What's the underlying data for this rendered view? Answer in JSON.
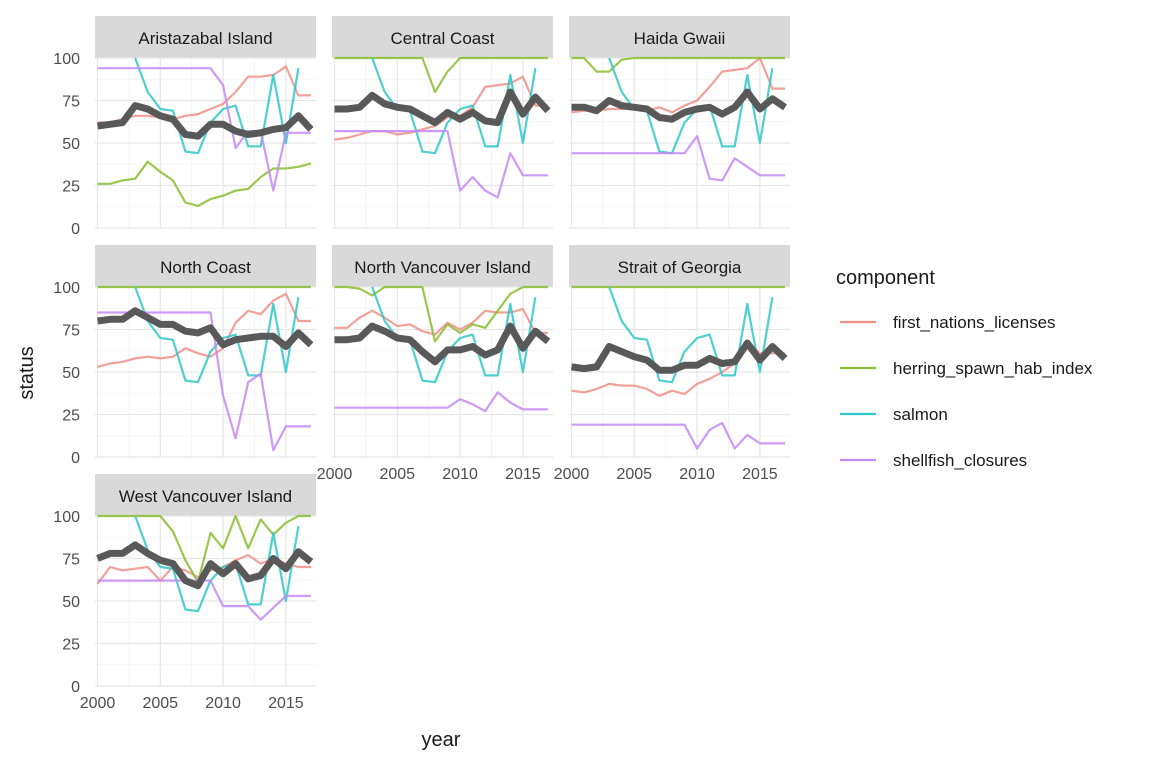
{
  "chart_data": {
    "type": "line",
    "xlabel": "year",
    "ylabel": "status",
    "xlim": [
      1999.8,
      2017.4
    ],
    "ylim": [
      0,
      100
    ],
    "x_ticks": [
      2000,
      2005,
      2010,
      2015
    ],
    "y_ticks": [
      0,
      25,
      50,
      75,
      100
    ],
    "grid": true,
    "legend": {
      "title": "component",
      "position": "right",
      "entries": [
        "first_nations_licenses",
        "herring_spawn_hab_index",
        "salmon",
        "shellfish_closures"
      ]
    },
    "colors": {
      "first_nations_licenses": "#f08f86",
      "herring_spawn_hab_index": "#8bbd2f",
      "salmon": "#2fc8c8",
      "shellfish_closures": "#c489f6",
      "score": "#595959"
    },
    "years": [
      2000,
      2001,
      2002,
      2003,
      2004,
      2005,
      2006,
      2007,
      2008,
      2009,
      2010,
      2011,
      2012,
      2013,
      2014,
      2015,
      2016,
      2017
    ],
    "panels": [
      {
        "title": "Aristazabal Island",
        "series": [
          {
            "name": "first_nations_licenses",
            "values": [
              62,
              62,
              64,
              66,
              66,
              65,
              64,
              66,
              67,
              70,
              73,
              80,
              89,
              89,
              90,
              95,
              78,
              78
            ]
          },
          {
            "name": "herring_spawn_hab_index",
            "values": [
              26,
              26,
              28,
              29,
              39,
              33,
              28,
              15,
              13,
              17,
              19,
              22,
              23,
              30,
              35,
              35,
              36,
              38
            ]
          },
          {
            "name": "salmon",
            "values": [
              null,
              null,
              null,
              100,
              80,
              70,
              69,
              45,
              44,
              62,
              70,
              72,
              48,
              48,
              90,
              50,
              94,
              null
            ]
          },
          {
            "name": "shellfish_closures",
            "values": [
              94,
              94,
              94,
              94,
              94,
              94,
              94,
              94,
              94,
              94,
              84,
              47,
              57,
              57,
              22,
              56,
              56,
              56
            ]
          },
          {
            "name": "score",
            "values": [
              60,
              61,
              62,
              72,
              70,
              66,
              64,
              55,
              54,
              61,
              61,
              57,
              55,
              56,
              58,
              59,
              66,
              58
            ]
          }
        ]
      },
      {
        "title": "Central Coast",
        "series": [
          {
            "name": "first_nations_licenses",
            "values": [
              52,
              53,
              55,
              57,
              57,
              55,
              56,
              58,
              60,
              65,
              66,
              71,
              83,
              84,
              85,
              89,
              72,
              72
            ]
          },
          {
            "name": "herring_spawn_hab_index",
            "values": [
              100,
              100,
              100,
              100,
              100,
              100,
              100,
              100,
              80,
              92,
              100,
              100,
              100,
              100,
              100,
              100,
              100,
              100
            ]
          },
          {
            "name": "salmon",
            "values": [
              null,
              null,
              null,
              100,
              80,
              70,
              69,
              45,
              44,
              62,
              70,
              72,
              48,
              48,
              90,
              50,
              94,
              null
            ]
          },
          {
            "name": "shellfish_closures",
            "values": [
              57,
              57,
              57,
              57,
              57,
              57,
              57,
              57,
              57,
              57,
              22,
              30,
              22,
              18,
              44,
              31,
              31,
              31
            ]
          },
          {
            "name": "score",
            "values": [
              70,
              70,
              71,
              78,
              73,
              71,
              70,
              66,
              62,
              68,
              64,
              68,
              63,
              62,
              80,
              67,
              77,
              69
            ]
          }
        ]
      },
      {
        "title": "Haida Gwaii",
        "series": [
          {
            "name": "first_nations_licenses",
            "values": [
              68,
              69,
              69,
              70,
              70,
              70,
              69,
              71,
              68,
              72,
              75,
              83,
              92,
              93,
              94,
              100,
              82,
              82
            ]
          },
          {
            "name": "herring_spawn_hab_index",
            "values": [
              100,
              100,
              92,
              92,
              99,
              100,
              100,
              100,
              100,
              100,
              100,
              100,
              100,
              100,
              100,
              100,
              100,
              100
            ]
          },
          {
            "name": "salmon",
            "values": [
              null,
              null,
              null,
              100,
              80,
              70,
              69,
              45,
              44,
              62,
              70,
              72,
              48,
              48,
              90,
              50,
              94,
              null
            ]
          },
          {
            "name": "shellfish_closures",
            "values": [
              44,
              44,
              44,
              44,
              44,
              44,
              44,
              44,
              44,
              44,
              54,
              29,
              28,
              41,
              36,
              31,
              31,
              31
            ]
          },
          {
            "name": "score",
            "values": [
              71,
              71,
              69,
              75,
              72,
              71,
              70,
              65,
              64,
              68,
              70,
              71,
              67,
              71,
              80,
              70,
              76,
              71
            ]
          }
        ]
      },
      {
        "title": "North Coast",
        "series": [
          {
            "name": "first_nations_licenses",
            "values": [
              53,
              55,
              56,
              58,
              59,
              58,
              59,
              64,
              61,
              59,
              64,
              79,
              86,
              84,
              92,
              96,
              80,
              80
            ]
          },
          {
            "name": "herring_spawn_hab_index",
            "values": [
              100,
              100,
              100,
              100,
              100,
              100,
              100,
              100,
              100,
              100,
              100,
              100,
              100,
              100,
              100,
              100,
              100,
              100
            ]
          },
          {
            "name": "salmon",
            "values": [
              null,
              null,
              null,
              100,
              80,
              70,
              69,
              45,
              44,
              62,
              70,
              72,
              48,
              48,
              90,
              50,
              94,
              null
            ]
          },
          {
            "name": "shellfish_closures",
            "values": [
              85,
              85,
              85,
              85,
              85,
              85,
              85,
              85,
              85,
              85,
              36,
              11,
              44,
              49,
              4,
              18,
              18,
              18
            ]
          },
          {
            "name": "score",
            "values": [
              80,
              81,
              81,
              86,
              82,
              78,
              78,
              74,
              73,
              76,
              66,
              69,
              70,
              71,
              71,
              65,
              73,
              66
            ]
          }
        ]
      },
      {
        "title": "North Vancouver Island",
        "series": [
          {
            "name": "first_nations_licenses",
            "values": [
              76,
              76,
              82,
              86,
              82,
              77,
              78,
              74,
              72,
              79,
              75,
              79,
              86,
              85,
              85,
              87,
              73,
              73
            ]
          },
          {
            "name": "herring_spawn_hab_index",
            "values": [
              100,
              100,
              99,
              95,
              100,
              100,
              100,
              100,
              68,
              78,
              73,
              78,
              76,
              86,
              96,
              100,
              100,
              100
            ]
          },
          {
            "name": "salmon",
            "values": [
              null,
              null,
              null,
              100,
              80,
              70,
              69,
              45,
              44,
              62,
              70,
              72,
              48,
              48,
              90,
              50,
              94,
              null
            ]
          },
          {
            "name": "shellfish_closures",
            "values": [
              29,
              29,
              29,
              29,
              29,
              29,
              29,
              29,
              29,
              29,
              34,
              31,
              27,
              38,
              32,
              28,
              28,
              28
            ]
          },
          {
            "name": "score",
            "values": [
              69,
              69,
              70,
              77,
              74,
              70,
              69,
              62,
              56,
              63,
              63,
              65,
              60,
              63,
              77,
              64,
              74,
              68
            ]
          }
        ]
      },
      {
        "title": "Strait of Georgia",
        "series": [
          {
            "name": "first_nations_licenses",
            "values": [
              39,
              38,
              40,
              43,
              42,
              42,
              40,
              36,
              39,
              37,
              43,
              46,
              50,
              55,
              68,
              61,
              61,
              61
            ]
          },
          {
            "name": "herring_spawn_hab_index",
            "values": [
              100,
              100,
              100,
              100,
              100,
              100,
              100,
              100,
              100,
              100,
              100,
              100,
              100,
              100,
              100,
              100,
              100,
              100
            ]
          },
          {
            "name": "salmon",
            "values": [
              null,
              null,
              null,
              100,
              80,
              70,
              69,
              45,
              44,
              62,
              70,
              72,
              48,
              48,
              90,
              50,
              94,
              null
            ]
          },
          {
            "name": "shellfish_closures",
            "values": [
              19,
              19,
              19,
              19,
              19,
              19,
              19,
              19,
              19,
              19,
              5,
              16,
              20,
              5,
              13,
              8,
              8,
              8
            ]
          },
          {
            "name": "score",
            "values": [
              53,
              52,
              53,
              65,
              62,
              59,
              57,
              51,
              51,
              54,
              54,
              58,
              55,
              56,
              67,
              57,
              65,
              58
            ]
          }
        ]
      },
      {
        "title": "West Vancouver Island",
        "series": [
          {
            "name": "first_nations_licenses",
            "values": [
              60,
              70,
              68,
              69,
              70,
              62,
              70,
              68,
              64,
              68,
              70,
              74,
              77,
              72,
              75,
              72,
              70,
              70
            ]
          },
          {
            "name": "herring_spawn_hab_index",
            "values": [
              100,
              100,
              100,
              100,
              100,
              100,
              91,
              74,
              61,
              90,
              81,
              100,
              81,
              98,
              89,
              96,
              100,
              100
            ]
          },
          {
            "name": "salmon",
            "values": [
              null,
              null,
              null,
              100,
              80,
              70,
              69,
              45,
              44,
              62,
              70,
              72,
              48,
              48,
              90,
              50,
              94,
              null
            ]
          },
          {
            "name": "shellfish_closures",
            "values": [
              62,
              62,
              62,
              62,
              62,
              62,
              62,
              62,
              62,
              62,
              47,
              47,
              47,
              39,
              46,
              53,
              53,
              53
            ]
          },
          {
            "name": "score",
            "values": [
              75,
              78,
              78,
              83,
              78,
              74,
              72,
              62,
              59,
              72,
              66,
              72,
              63,
              65,
              75,
              69,
              79,
              73
            ]
          }
        ]
      }
    ]
  }
}
